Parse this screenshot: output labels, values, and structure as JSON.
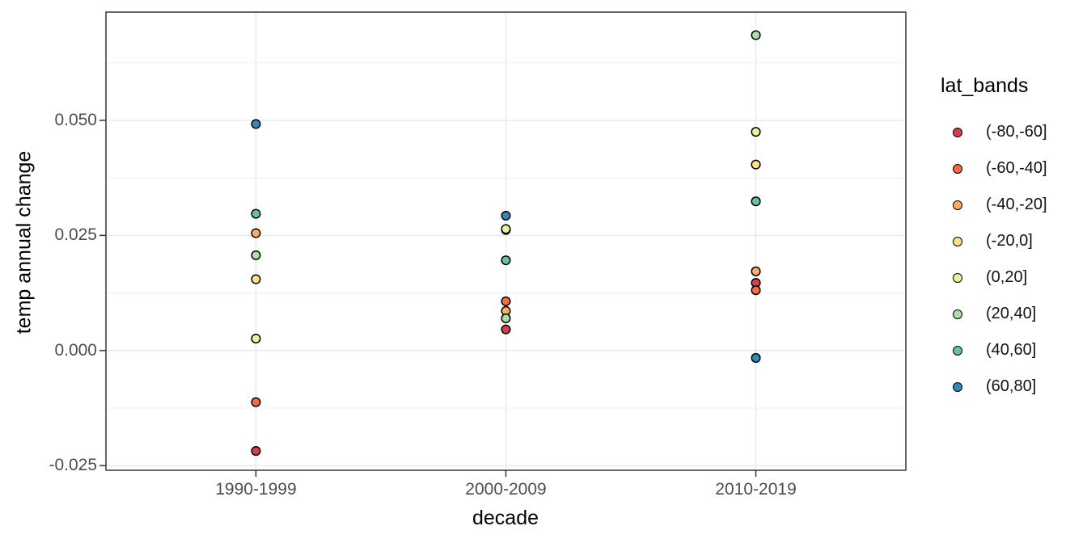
{
  "chart_data": {
    "type": "scatter",
    "title": "",
    "xlabel": "decade",
    "ylabel": "temp annual change",
    "categories": [
      "1990-1999",
      "2000-2009",
      "2010-2019"
    ],
    "series": [
      {
        "name": "(-80,-60]",
        "color": "#D53E4F",
        "values": [
          -0.0218,
          0.0046,
          0.0147
        ]
      },
      {
        "name": "(-60,-40]",
        "color": "#F46D43",
        "values": [
          -0.0112,
          0.0107,
          0.0131
        ]
      },
      {
        "name": "(-40,-20]",
        "color": "#FDAE61",
        "values": [
          0.0255,
          0.0086,
          0.0172
        ]
      },
      {
        "name": "(-20,0]",
        "color": "#FEE08B",
        "values": [
          0.0155,
          0.0262,
          0.0404
        ]
      },
      {
        "name": "(0,20]",
        "color": "#E6F598",
        "values": [
          0.0026,
          0.0264,
          0.0475
        ]
      },
      {
        "name": "(20,40]",
        "color": "#ABDDA4",
        "values": [
          0.0207,
          0.007,
          0.0685
        ]
      },
      {
        "name": "(40,60]",
        "color": "#66C2A5",
        "values": [
          0.0297,
          0.0196,
          0.0324
        ]
      },
      {
        "name": "(60,80]",
        "color": "#3288BD",
        "values": [
          0.0492,
          0.0293,
          -0.0016
        ]
      }
    ],
    "legend_title": "lat_bands",
    "legend_position": "right",
    "ylim": [
      -0.026,
      0.0735
    ],
    "y_major_breaks": [
      -0.025,
      0,
      0.025,
      0.05
    ],
    "y_minor_breaks": [
      -0.0125,
      0.0125,
      0.0375,
      0.0625
    ],
    "grid": true
  },
  "axes": {
    "y_ticks": [
      {
        "label": "0.050",
        "value": 0.05
      },
      {
        "label": "0.025",
        "value": 0.025
      },
      {
        "label": "0.000",
        "value": 0
      },
      {
        "label": "-0.025",
        "value": -0.025
      }
    ]
  },
  "style": {
    "background": "#FFFFFF",
    "panel_border": "#333333",
    "grid_color": "#EBEBEB",
    "tick_mark_color": "#333333",
    "axis_text_color": "#4D4D4D",
    "axis_title_color": "#000000",
    "point_stroke": "#000000"
  }
}
